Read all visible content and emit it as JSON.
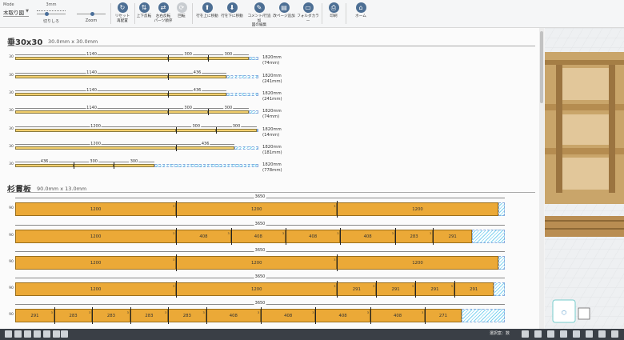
{
  "toolbar": {
    "mode_label": "Mode",
    "mode_value": "木取り図",
    "slider_cut": {
      "top": "3mm",
      "bottom": "切りしろ",
      "level": 0.35
    },
    "slider_zoom": {
      "bottom": "Zoom",
      "level": 0.55
    },
    "buttons": {
      "reset": "リセット\n再配置",
      "vflip": "上下反転",
      "hflip": "左右反転\nパーツ順序",
      "rotate": "回転",
      "row_up": "行を上に移動",
      "row_down": "行を下に移動",
      "comment": "コメント/行追加\n図の編集",
      "add_page": "改ページ追加",
      "folder": "フォルダカラー",
      "print": "印刷",
      "home": "ホーム"
    },
    "icons": {
      "reset": "↻",
      "vflip": "⇅",
      "hflip": "⇄",
      "rotate": "⟳",
      "row_up": "⬆",
      "row_down": "⬇",
      "comment": "✎",
      "add_page": "▤",
      "folder": "▭",
      "print": "⎙",
      "home": "⌂"
    }
  },
  "sections": [
    {
      "title": "垂30x30",
      "dim": "30.0mm x 30.0mm",
      "thickness": "30",
      "stock_length": 1820,
      "color": "#f3cf6e",
      "boards": [
        {
          "parts": [
            1140,
            300,
            300
          ],
          "label": "1820mm",
          "waste": "(74mm)",
          "waste_len": 74
        },
        {
          "parts": [
            1140,
            436
          ],
          "label": "1820mm",
          "waste": "(241mm)",
          "waste_len": 241
        },
        {
          "parts": [
            1140,
            436
          ],
          "label": "1820mm",
          "waste": "(241mm)",
          "waste_len": 241
        },
        {
          "parts": [
            1140,
            300,
            300
          ],
          "label": "1820mm",
          "waste": "(74mm)",
          "waste_len": 74
        },
        {
          "parts": [
            1200,
            300,
            300
          ],
          "label": "1820mm",
          "waste": "(14mm)",
          "waste_len": 14
        },
        {
          "parts": [
            1200,
            436
          ],
          "label": "1820mm",
          "waste": "(181mm)",
          "waste_len": 181
        },
        {
          "parts": [
            436,
            300,
            300
          ],
          "label": "1820mm",
          "waste": "(778mm)",
          "waste_len": 778
        }
      ]
    },
    {
      "title": "杉貫板",
      "dim": "90.0mm x 13.0mm",
      "thickness": "90",
      "stock_length": 3650,
      "color": "#eba937",
      "boards": [
        {
          "total": "3650",
          "parts": [
            1200,
            1200,
            1200
          ]
        },
        {
          "total": "3650",
          "parts": [
            1200,
            408,
            408,
            408,
            408,
            283,
            291
          ]
        },
        {
          "total": "3650",
          "parts": [
            1200,
            1200,
            1200
          ]
        },
        {
          "total": "3650",
          "parts": [
            1200,
            1200,
            291,
            291,
            291,
            291
          ]
        },
        {
          "total": "3650",
          "parts": [
            291,
            283,
            283,
            283,
            283,
            408,
            408,
            408,
            408,
            271
          ]
        }
      ]
    }
  ],
  "status": {
    "text": "選択案：数"
  }
}
